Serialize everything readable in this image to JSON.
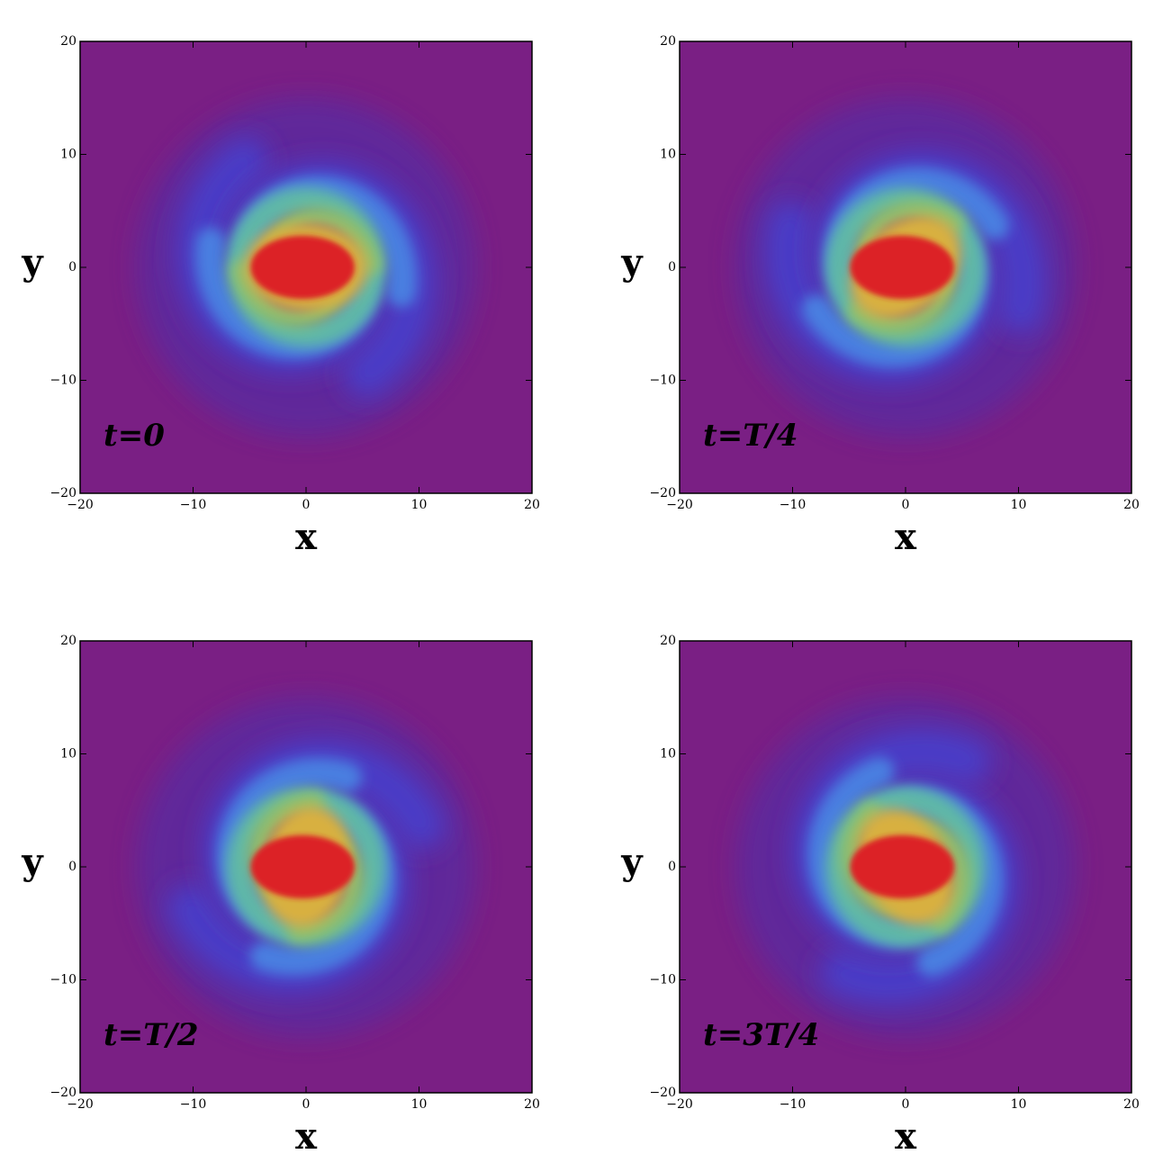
{
  "chart_data": [
    {
      "type": "density",
      "annotation": "t=0",
      "xlabel": "x",
      "ylabel": "y",
      "xlim": [
        -20,
        20
      ],
      "ylim": [
        -20,
        20
      ],
      "xticks": [
        {
          "value": -20,
          "label": "−20"
        },
        {
          "value": -10,
          "label": "−10"
        },
        0,
        10,
        20
      ],
      "yticks": [
        {
          "value": -20,
          "label": "−20"
        },
        {
          "value": -10,
          "label": "−10"
        },
        0,
        10,
        20
      ]
    },
    {
      "type": "density",
      "annotation": "t=T/4",
      "xlabel": "x",
      "ylabel": "y",
      "xlim": [
        -20,
        20
      ],
      "ylim": [
        -20,
        20
      ],
      "xticks": [
        {
          "value": -20,
          "label": "−20"
        },
        {
          "value": -10,
          "label": "−10"
        },
        0,
        10,
        20
      ],
      "yticks": [
        {
          "value": -20,
          "label": "−20"
        },
        {
          "value": -10,
          "label": "−10"
        },
        0,
        10,
        20
      ]
    },
    {
      "type": "density",
      "annotation": "t=T/2",
      "xlabel": "x",
      "ylabel": "y",
      "xlim": [
        -20,
        20
      ],
      "ylim": [
        -20,
        20
      ],
      "xticks": [
        {
          "value": -20,
          "label": "−20"
        },
        {
          "value": -10,
          "label": "−10"
        },
        0,
        10,
        20
      ],
      "yticks": [
        {
          "value": -20,
          "label": "−20"
        },
        {
          "value": -10,
          "label": "−10"
        },
        0,
        10,
        20
      ]
    },
    {
      "type": "density",
      "annotation": "t=3T/4",
      "xlabel": "x",
      "ylabel": "y",
      "xlim": [
        -20,
        20
      ],
      "ylim": [
        -20,
        20
      ],
      "xticks": [
        {
          "value": -20,
          "label": "−20"
        },
        {
          "value": -10,
          "label": "−10"
        },
        0,
        10,
        20
      ],
      "yticks": [
        {
          "value": -20,
          "label": "−20"
        },
        {
          "value": -10,
          "label": "−10"
        },
        0,
        10,
        20
      ]
    }
  ]
}
